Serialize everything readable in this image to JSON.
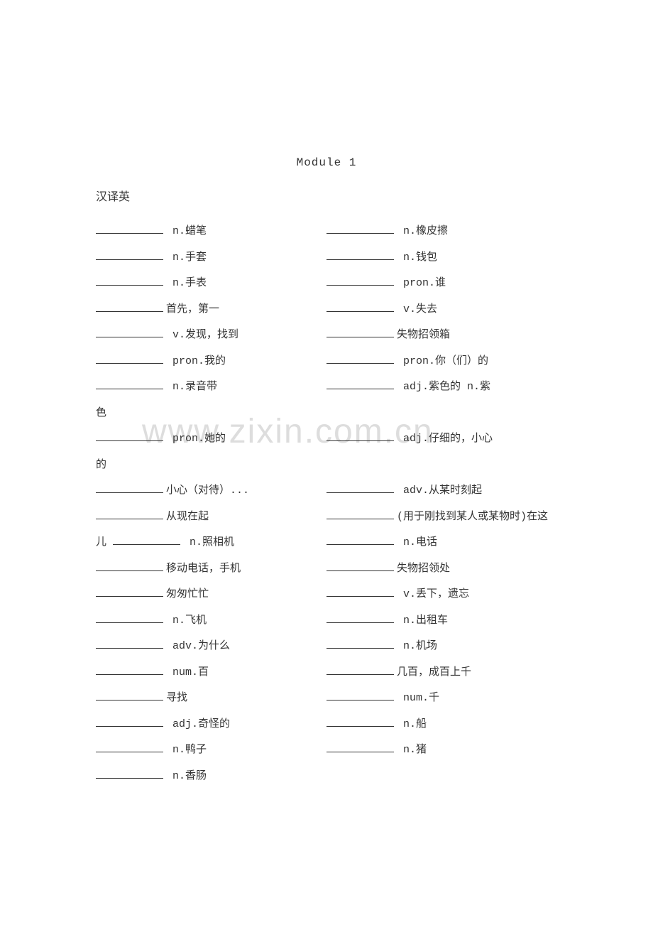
{
  "module_title": "Module 1",
  "section_label": "汉译英",
  "watermark_text": "www.zixin.com.cn",
  "colors": {
    "text": "#333333",
    "background": "#ffffff",
    "watermark": "#dddddd",
    "underline": "#333333"
  },
  "typography": {
    "body_fontsize": 16,
    "entry_fontsize": 15,
    "watermark_fontsize": 48,
    "line_height": 2.1
  },
  "entries": {
    "row1": {
      "left": " n.蜡笔",
      "right": " n.橡皮擦"
    },
    "row2": {
      "left": " n.手套",
      "right": " n.钱包"
    },
    "row3": {
      "left": " n.手表",
      "right": " pron.谁"
    },
    "row4": {
      "left": "首先，第一",
      "right": " v.失去"
    },
    "row5": {
      "left": " v.发现，找到",
      "right": "失物招领箱"
    },
    "row6": {
      "left": " pron.我的",
      "right": " pron.你（们）的"
    },
    "row7": {
      "left": " n.录音带",
      "right": " adj.紫色的  n.紫"
    },
    "row7b": {
      "single": "色"
    },
    "row8": {
      "left": " pron.她的",
      "right": " adj.仔细的，小心"
    },
    "row8b": {
      "single": "的"
    },
    "row9": {
      "left": "小心（对待）...",
      "right": " adv.从某时刻起"
    },
    "row10": {
      "left": "从现在起",
      "right": "(用于刚找到某人或某物时)在这"
    },
    "row10b": {
      "left_prefix": "儿  ",
      "left": " n.照相机",
      "right": " n.电话"
    },
    "row11": {
      "left": "移动电话，手机",
      "right": "失物招领处"
    },
    "row12": {
      "left": "匆匆忙忙",
      "right": " v.丢下，遗忘"
    },
    "row13": {
      "left": " n.飞机",
      "right": " n.出租车"
    },
    "row14": {
      "left": " adv.为什么",
      "right": " n.机场"
    },
    "row15": {
      "left": " num.百",
      "right": "几百，成百上千"
    },
    "row16": {
      "left": "寻找",
      "right": " num.千"
    },
    "row17": {
      "left": " adj.奇怪的",
      "right": " n.船"
    },
    "row18": {
      "left": " n.鸭子",
      "right": " n.猪"
    },
    "row19": {
      "left": " n.香肠"
    }
  }
}
